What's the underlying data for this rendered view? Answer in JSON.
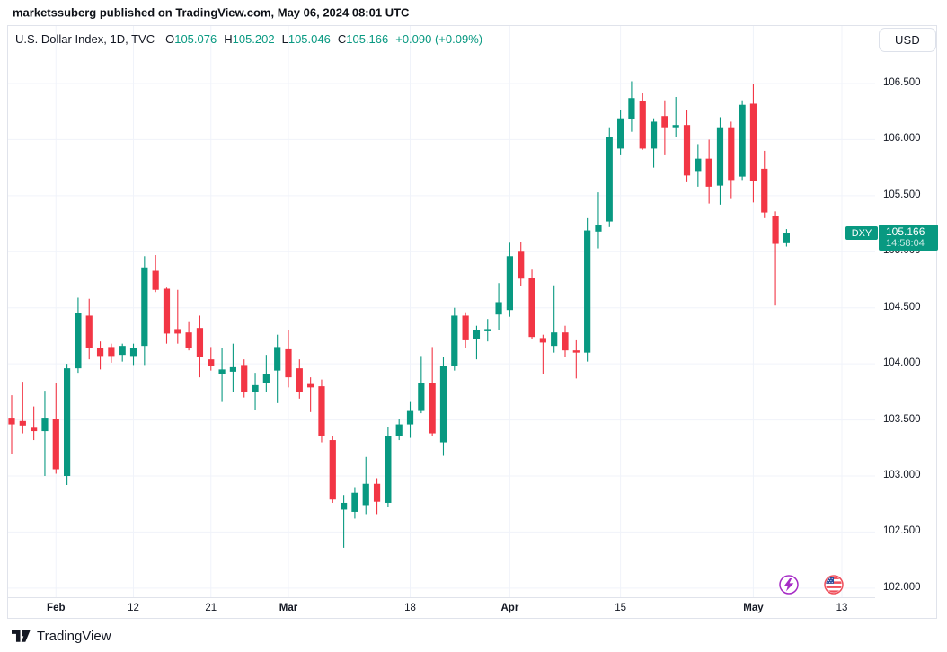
{
  "page": {
    "published_line": "marketssuberg published on TradingView.com, May 06, 2024 08:01 UTC"
  },
  "toolbar": {
    "currency_button": "USD"
  },
  "legend": {
    "symbol_title": "U.S. Dollar Index, 1D, TVC",
    "o_label": "O",
    "o_value": "105.076",
    "h_label": "H",
    "h_value": "105.202",
    "l_label": "L",
    "l_value": "105.046",
    "c_label": "C",
    "c_value": "105.166",
    "change_value": "+0.090 (+0.09%)"
  },
  "price_badge": {
    "symbol": "DXY",
    "price": "105.166",
    "countdown": "14:58:04"
  },
  "footer": {
    "brand": "TradingView"
  },
  "colors": {
    "up": "#089981",
    "down": "#f23645",
    "text": "#131722",
    "grid": "#f0f3fa",
    "border": "#e0e3eb",
    "event_purple": "#a62bc6",
    "event_red": "#ef4e5a",
    "flag_blue": "#2b4f9e"
  },
  "chart_data": {
    "type": "candlestick",
    "title": "U.S. Dollar Index",
    "timeframe": "1D",
    "exchange": "TVC",
    "current_price": 105.166,
    "countdown": "14:58:04",
    "ylim": [
      102.0,
      106.5
    ],
    "grid": true,
    "legend_position": "top-left",
    "price_ticks": [
      "106.500",
      "106.000",
      "105.500",
      "105.000",
      "104.500",
      "104.000",
      "103.500",
      "103.000",
      "102.500",
      "102.000"
    ],
    "time_ticks": [
      {
        "label": "Feb",
        "candle_index": 4,
        "bold": true
      },
      {
        "label": "12",
        "candle_index": 11,
        "bold": false
      },
      {
        "label": "21",
        "candle_index": 18,
        "bold": false
      },
      {
        "label": "Mar",
        "candle_index": 25,
        "bold": true
      },
      {
        "label": "18",
        "candle_index": 36,
        "bold": false
      },
      {
        "label": "Apr",
        "candle_index": 45,
        "bold": true
      },
      {
        "label": "15",
        "candle_index": 55,
        "bold": false
      },
      {
        "label": "May",
        "candle_index": 67,
        "bold": true
      },
      {
        "label": "13",
        "candle_index": 75,
        "bold": false
      }
    ],
    "candles": [
      {
        "d": "Jan 26",
        "o": 103.52,
        "h": 103.72,
        "l": 103.2,
        "c": 103.46
      },
      {
        "d": "Jan 29",
        "o": 103.49,
        "h": 103.84,
        "l": 103.38,
        "c": 103.45
      },
      {
        "d": "Jan 30",
        "o": 103.43,
        "h": 103.62,
        "l": 103.32,
        "c": 103.4
      },
      {
        "d": "Jan 31",
        "o": 103.4,
        "h": 103.76,
        "l": 103.0,
        "c": 103.52
      },
      {
        "d": "Feb 1",
        "o": 103.51,
        "h": 103.83,
        "l": 103.02,
        "c": 103.06
      },
      {
        "d": "Feb 2",
        "o": 103.0,
        "h": 104.0,
        "l": 102.92,
        "c": 103.96
      },
      {
        "d": "Feb 5",
        "o": 103.96,
        "h": 104.59,
        "l": 103.92,
        "c": 104.45
      },
      {
        "d": "Feb 6",
        "o": 104.43,
        "h": 104.58,
        "l": 104.04,
        "c": 104.14
      },
      {
        "d": "Feb 7",
        "o": 104.14,
        "h": 104.2,
        "l": 103.95,
        "c": 104.07
      },
      {
        "d": "Feb 8",
        "o": 104.15,
        "h": 104.18,
        "l": 104.01,
        "c": 104.07
      },
      {
        "d": "Feb 9",
        "o": 104.08,
        "h": 104.18,
        "l": 104.02,
        "c": 104.16
      },
      {
        "d": "Feb 12",
        "o": 104.07,
        "h": 104.18,
        "l": 103.99,
        "c": 104.14
      },
      {
        "d": "Feb 13",
        "o": 104.16,
        "h": 104.96,
        "l": 103.99,
        "c": 104.86
      },
      {
        "d": "Feb 14",
        "o": 104.83,
        "h": 104.97,
        "l": 104.64,
        "c": 104.66
      },
      {
        "d": "Feb 15",
        "o": 104.67,
        "h": 104.68,
        "l": 104.18,
        "c": 104.27
      },
      {
        "d": "Feb 16",
        "o": 104.31,
        "h": 104.66,
        "l": 104.18,
        "c": 104.27
      },
      {
        "d": "Feb 19",
        "o": 104.28,
        "h": 104.38,
        "l": 104.12,
        "c": 104.14
      },
      {
        "d": "Feb 20",
        "o": 104.32,
        "h": 104.43,
        "l": 103.88,
        "c": 104.06
      },
      {
        "d": "Feb 21",
        "o": 104.04,
        "h": 104.15,
        "l": 103.94,
        "c": 103.98
      },
      {
        "d": "Feb 22",
        "o": 103.91,
        "h": 104.14,
        "l": 103.66,
        "c": 103.95
      },
      {
        "d": "Feb 23",
        "o": 103.93,
        "h": 104.18,
        "l": 103.75,
        "c": 103.97
      },
      {
        "d": "Feb 26",
        "o": 103.99,
        "h": 104.04,
        "l": 103.7,
        "c": 103.75
      },
      {
        "d": "Feb 27",
        "o": 103.75,
        "h": 103.92,
        "l": 103.59,
        "c": 103.81
      },
      {
        "d": "Feb 28",
        "o": 103.83,
        "h": 104.08,
        "l": 103.75,
        "c": 103.91
      },
      {
        "d": "Feb 29",
        "o": 103.94,
        "h": 104.26,
        "l": 103.65,
        "c": 104.15
      },
      {
        "d": "Mar 1",
        "o": 104.13,
        "h": 104.3,
        "l": 103.79,
        "c": 103.88
      },
      {
        "d": "Mar 4",
        "o": 103.96,
        "h": 104.04,
        "l": 103.69,
        "c": 103.75
      },
      {
        "d": "Mar 5",
        "o": 103.82,
        "h": 103.88,
        "l": 103.57,
        "c": 103.79
      },
      {
        "d": "Mar 6",
        "o": 103.8,
        "h": 103.86,
        "l": 103.3,
        "c": 103.36
      },
      {
        "d": "Mar 7",
        "o": 103.32,
        "h": 103.36,
        "l": 102.76,
        "c": 102.79
      },
      {
        "d": "Mar 8",
        "o": 102.7,
        "h": 102.83,
        "l": 102.36,
        "c": 102.76
      },
      {
        "d": "Mar 11",
        "o": 102.68,
        "h": 102.9,
        "l": 102.62,
        "c": 102.85
      },
      {
        "d": "Mar 12",
        "o": 102.74,
        "h": 103.17,
        "l": 102.66,
        "c": 102.93
      },
      {
        "d": "Mar 13",
        "o": 102.93,
        "h": 102.98,
        "l": 102.66,
        "c": 102.77
      },
      {
        "d": "Mar 14",
        "o": 102.76,
        "h": 103.44,
        "l": 102.72,
        "c": 103.36
      },
      {
        "d": "Mar 15",
        "o": 103.36,
        "h": 103.51,
        "l": 103.32,
        "c": 103.46
      },
      {
        "d": "Mar 18",
        "o": 103.46,
        "h": 103.66,
        "l": 103.34,
        "c": 103.58
      },
      {
        "d": "Mar 19",
        "o": 103.58,
        "h": 104.07,
        "l": 103.56,
        "c": 103.83
      },
      {
        "d": "Mar 20",
        "o": 103.83,
        "h": 104.15,
        "l": 103.36,
        "c": 103.38
      },
      {
        "d": "Mar 21",
        "o": 103.3,
        "h": 104.06,
        "l": 103.18,
        "c": 103.98
      },
      {
        "d": "Mar 22",
        "o": 103.98,
        "h": 104.5,
        "l": 103.94,
        "c": 104.43
      },
      {
        "d": "Mar 25",
        "o": 104.43,
        "h": 104.46,
        "l": 104.14,
        "c": 104.21
      },
      {
        "d": "Mar 26",
        "o": 104.22,
        "h": 104.34,
        "l": 104.04,
        "c": 104.3
      },
      {
        "d": "Mar 27",
        "o": 104.29,
        "h": 104.4,
        "l": 104.2,
        "c": 104.31
      },
      {
        "d": "Mar 28",
        "o": 104.44,
        "h": 104.72,
        "l": 104.3,
        "c": 104.55
      },
      {
        "d": "Apr 1",
        "o": 104.48,
        "h": 105.08,
        "l": 104.42,
        "c": 104.96
      },
      {
        "d": "Apr 2",
        "o": 105.0,
        "h": 105.09,
        "l": 104.69,
        "c": 104.76
      },
      {
        "d": "Apr 3",
        "o": 104.77,
        "h": 104.84,
        "l": 104.22,
        "c": 104.24
      },
      {
        "d": "Apr 4",
        "o": 104.23,
        "h": 104.26,
        "l": 103.91,
        "c": 104.19
      },
      {
        "d": "Apr 5",
        "o": 104.16,
        "h": 104.7,
        "l": 104.1,
        "c": 104.28
      },
      {
        "d": "Apr 8",
        "o": 104.28,
        "h": 104.34,
        "l": 104.06,
        "c": 104.12
      },
      {
        "d": "Apr 9",
        "o": 104.12,
        "h": 104.21,
        "l": 103.87,
        "c": 104.1
      },
      {
        "d": "Apr 10",
        "o": 104.1,
        "h": 105.3,
        "l": 104.02,
        "c": 105.19
      },
      {
        "d": "Apr 11",
        "o": 105.18,
        "h": 105.53,
        "l": 105.03,
        "c": 105.24
      },
      {
        "d": "Apr 12",
        "o": 105.27,
        "h": 106.11,
        "l": 105.22,
        "c": 106.02
      },
      {
        "d": "Apr 15",
        "o": 105.92,
        "h": 106.26,
        "l": 105.86,
        "c": 106.19
      },
      {
        "d": "Apr 16",
        "o": 106.18,
        "h": 106.52,
        "l": 106.07,
        "c": 106.37
      },
      {
        "d": "Apr 17",
        "o": 106.34,
        "h": 106.42,
        "l": 105.91,
        "c": 105.92
      },
      {
        "d": "Apr 18",
        "o": 105.92,
        "h": 106.19,
        "l": 105.75,
        "c": 106.16
      },
      {
        "d": "Apr 19",
        "o": 106.21,
        "h": 106.35,
        "l": 105.86,
        "c": 106.11
      },
      {
        "d": "Apr 22",
        "o": 106.11,
        "h": 106.38,
        "l": 106.02,
        "c": 106.13
      },
      {
        "d": "Apr 23",
        "o": 106.13,
        "h": 106.26,
        "l": 105.62,
        "c": 105.68
      },
      {
        "d": "Apr 24",
        "o": 105.72,
        "h": 105.96,
        "l": 105.58,
        "c": 105.83
      },
      {
        "d": "Apr 25",
        "o": 105.83,
        "h": 106.0,
        "l": 105.43,
        "c": 105.58
      },
      {
        "d": "Apr 26",
        "o": 105.59,
        "h": 106.2,
        "l": 105.42,
        "c": 106.11
      },
      {
        "d": "Apr 29",
        "o": 106.11,
        "h": 106.16,
        "l": 105.47,
        "c": 105.64
      },
      {
        "d": "Apr 30",
        "o": 105.67,
        "h": 106.35,
        "l": 105.64,
        "c": 106.31
      },
      {
        "d": "May 1",
        "o": 106.32,
        "h": 106.5,
        "l": 105.44,
        "c": 105.63
      },
      {
        "d": "May 2",
        "o": 105.74,
        "h": 105.9,
        "l": 105.3,
        "c": 105.35
      },
      {
        "d": "May 3",
        "o": 105.32,
        "h": 105.36,
        "l": 104.52,
        "c": 105.07
      },
      {
        "d": "May 6",
        "o": 105.076,
        "h": 105.202,
        "l": 105.046,
        "c": 105.166
      }
    ],
    "event_markers": [
      {
        "icon": "lightning",
        "color_key": "event_purple"
      },
      {
        "icon": "us-flag",
        "color_key": "event_red"
      }
    ]
  }
}
